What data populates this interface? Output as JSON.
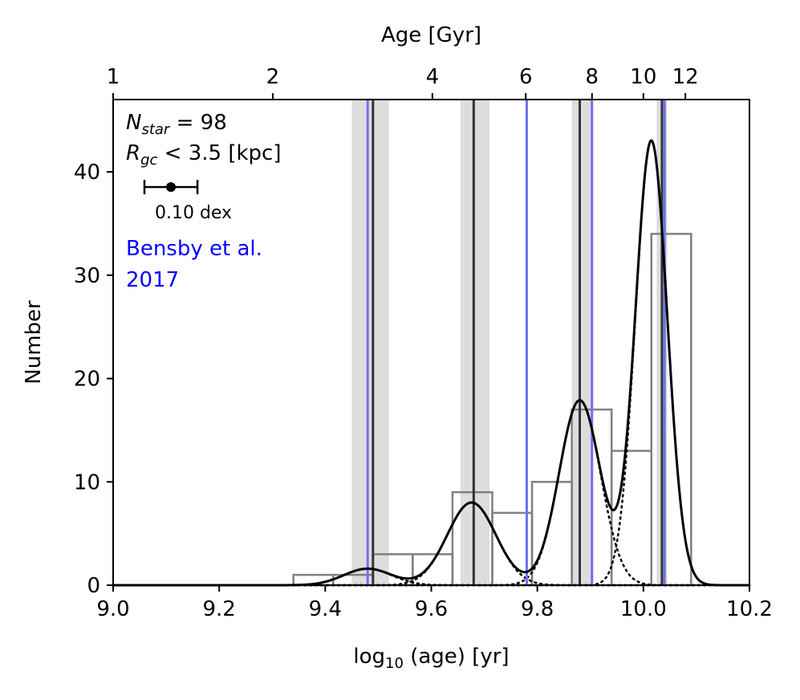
{
  "chart_data": {
    "type": "histogram",
    "xlabel": "log10 (age) [yr]",
    "xlabel_sub": "10",
    "xlabel_parts": [
      "log",
      " (age) [yr]"
    ],
    "ylabel": "Number",
    "top_axis_title": "Age [Gyr]",
    "xlim": [
      9.0,
      10.2
    ],
    "ylim": [
      0,
      47
    ],
    "x_ticks": [
      9.0,
      9.2,
      9.4,
      9.6,
      9.8,
      10.0,
      10.2
    ],
    "x_tick_labels": [
      "9.0",
      "9.2",
      "9.4",
      "9.6",
      "9.8",
      "10.0",
      "10.2"
    ],
    "y_ticks": [
      0,
      10,
      20,
      30,
      40
    ],
    "y_tick_labels": [
      "0",
      "10",
      "20",
      "30",
      "40"
    ],
    "top_ticks_gyr": [
      1,
      2,
      4,
      6,
      8,
      10,
      12
    ],
    "top_tick_labels": [
      "1",
      "2",
      "4",
      "6",
      "8",
      "10",
      "12"
    ],
    "annotations": {
      "nstar_value": "98",
      "nstar_label": "N",
      "nstar_sub": "star",
      "rgc_label": "R",
      "rgc_sub": "gc",
      "rgc_rest": " < 3.5 [kpc]",
      "scalebar_label": "0.10 dex",
      "scalebar_width_dex": 0.1,
      "reference_line1": "Bensby et al.",
      "reference_line2": "2017",
      "reference_color": "#0000ff"
    },
    "histogram": {
      "edges": [
        9.34,
        9.415,
        9.49,
        9.565,
        9.64,
        9.715,
        9.79,
        9.865,
        9.94,
        10.015,
        10.09
      ],
      "bins": [
        {
          "x0": 9.34,
          "x1": 9.415,
          "count": 1
        },
        {
          "x0": 9.415,
          "x1": 9.49,
          "count": 1
        },
        {
          "x0": 9.49,
          "x1": 9.565,
          "count": 3
        },
        {
          "x0": 9.565,
          "x1": 9.64,
          "count": 3
        },
        {
          "x0": 9.64,
          "x1": 9.715,
          "count": 9
        },
        {
          "x0": 9.715,
          "x1": 9.79,
          "count": 7
        },
        {
          "x0": 9.79,
          "x1": 9.865,
          "count": 10
        },
        {
          "x0": 9.865,
          "x1": 9.94,
          "count": 17
        },
        {
          "x0": 9.94,
          "x1": 10.015,
          "count": 13
        },
        {
          "x0": 10.015,
          "x1": 10.09,
          "count": 34
        }
      ],
      "color": "#808080"
    },
    "components": [
      {
        "mu": 9.48,
        "sigma": 0.045,
        "amp": 1.6
      },
      {
        "mu": 9.676,
        "sigma": 0.046,
        "amp": 8.0
      },
      {
        "mu": 9.88,
        "sigma": 0.039,
        "amp": 17.9
      },
      {
        "mu": 10.015,
        "sigma": 0.03,
        "amp": 43.0
      }
    ],
    "model_total_color": "#000000",
    "component_style": "dotted",
    "component_peaks": [
      {
        "mu": 9.49,
        "lo": 9.45,
        "hi": 9.52
      },
      {
        "mu": 9.68,
        "lo": 9.655,
        "hi": 9.71
      },
      {
        "mu": 9.88,
        "lo": 9.865,
        "hi": 9.905
      },
      {
        "mu": 10.035,
        "lo": 10.025,
        "hi": 10.045
      }
    ],
    "bensby_lines": [
      9.48,
      9.78,
      9.903,
      10.04
    ],
    "peak_line_color": "#333333",
    "band_color": "#dddddd"
  }
}
